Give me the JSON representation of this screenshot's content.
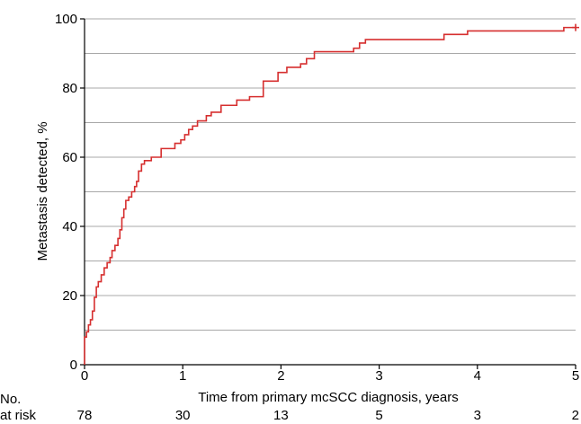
{
  "chart_data": {
    "type": "line",
    "ylabel": "Metastasis detected, %",
    "xlabel": "Time from primary mcSCC diagnosis, years",
    "xlim": [
      0,
      5
    ],
    "ylim": [
      0,
      100
    ],
    "x_ticks": [
      0,
      1,
      2,
      3,
      4,
      5
    ],
    "y_ticks": [
      0,
      20,
      40,
      60,
      80,
      100
    ],
    "y_gridlines": [
      10,
      20,
      30,
      40,
      50,
      60,
      70,
      80,
      90
    ],
    "grid": "horizontal",
    "line_color": "#d62f2f",
    "series": [
      {
        "censor_marks": [
          [
            5.0,
            97.5
          ]
        ],
        "steps": [
          [
            0.0,
            0.0
          ],
          [
            0.0,
            8.0
          ],
          [
            0.02,
            9.5
          ],
          [
            0.04,
            11.5
          ],
          [
            0.06,
            13.0
          ],
          [
            0.08,
            15.5
          ],
          [
            0.1,
            19.5
          ],
          [
            0.12,
            22.5
          ],
          [
            0.14,
            24.0
          ],
          [
            0.17,
            26.0
          ],
          [
            0.2,
            28.0
          ],
          [
            0.23,
            29.5
          ],
          [
            0.26,
            31.0
          ],
          [
            0.28,
            33.0
          ],
          [
            0.31,
            34.5
          ],
          [
            0.34,
            36.5
          ],
          [
            0.36,
            39.0
          ],
          [
            0.38,
            42.5
          ],
          [
            0.4,
            45.0
          ],
          [
            0.42,
            47.5
          ],
          [
            0.45,
            48.5
          ],
          [
            0.48,
            50.0
          ],
          [
            0.51,
            51.5
          ],
          [
            0.53,
            53.0
          ],
          [
            0.55,
            56.0
          ],
          [
            0.58,
            58.0
          ],
          [
            0.61,
            59.0
          ],
          [
            0.68,
            60.0
          ],
          [
            0.78,
            62.5
          ],
          [
            0.92,
            64.0
          ],
          [
            0.98,
            65.0
          ],
          [
            1.02,
            66.5
          ],
          [
            1.06,
            68.0
          ],
          [
            1.1,
            69.0
          ],
          [
            1.15,
            70.5
          ],
          [
            1.24,
            72.0
          ],
          [
            1.29,
            73.0
          ],
          [
            1.39,
            75.0
          ],
          [
            1.55,
            76.5
          ],
          [
            1.68,
            77.5
          ],
          [
            1.82,
            82.0
          ],
          [
            1.97,
            84.5
          ],
          [
            2.06,
            86.0
          ],
          [
            2.2,
            87.0
          ],
          [
            2.26,
            88.5
          ],
          [
            2.34,
            90.5
          ],
          [
            2.74,
            91.5
          ],
          [
            2.8,
            93.0
          ],
          [
            2.86,
            94.0
          ],
          [
            3.66,
            95.5
          ],
          [
            3.9,
            96.5
          ],
          [
            4.88,
            97.5
          ],
          [
            5.0,
            97.5
          ]
        ]
      }
    ],
    "risk_table": {
      "label_line1": "No.",
      "label_line2": "at risk",
      "x": [
        0,
        1,
        2,
        3,
        4,
        5
      ],
      "values": [
        "78",
        "30",
        "13",
        "5",
        "3",
        "2"
      ]
    }
  }
}
